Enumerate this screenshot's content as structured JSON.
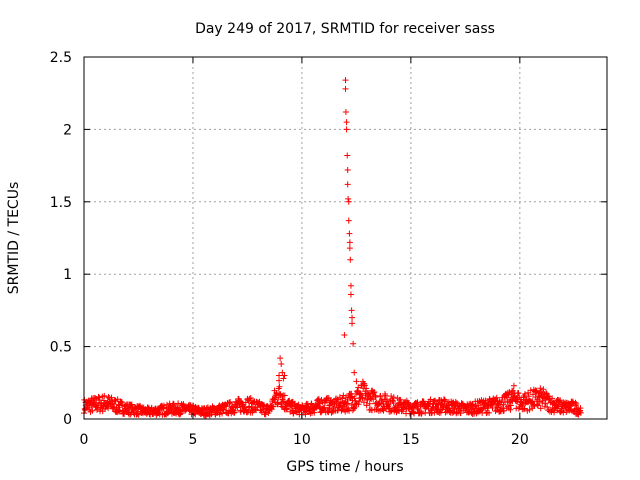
{
  "chart_data": {
    "type": "scatter",
    "title": "Day 249 of 2017, SRMTID for receiver sass",
    "xlabel": "GPS time / hours",
    "ylabel": "SRMTID / TECUs",
    "xlim": [
      0,
      24
    ],
    "ylim": [
      0,
      2.5
    ],
    "x_ticks": [
      0,
      5,
      10,
      15,
      20
    ],
    "y_ticks": [
      0,
      0.5,
      1,
      1.5,
      2,
      2.5
    ],
    "x_tick_labels": [
      "0",
      "5",
      "10",
      "15",
      "20"
    ],
    "y_tick_labels": [
      "0",
      "0.5",
      "1",
      "1.5",
      "2",
      "2.5"
    ],
    "grid": true,
    "marker": "+",
    "color": "#ff0000",
    "series": [
      {
        "name": "SRMTID",
        "baseline_trace": {
          "x": [
            0.0,
            0.5,
            1.0,
            1.5,
            2.0,
            2.5,
            3.0,
            3.5,
            4.0,
            4.5,
            5.0,
            5.5,
            6.0,
            6.5,
            7.0,
            7.5,
            8.0,
            8.5,
            8.8,
            9.0,
            9.2,
            9.5,
            10.0,
            10.5,
            11.0,
            11.5,
            11.8,
            12.2,
            12.5,
            12.8,
            13.0,
            13.5,
            14.0,
            14.5,
            15.0,
            15.5,
            16.0,
            16.5,
            17.0,
            17.5,
            18.0,
            18.5,
            19.0,
            19.5,
            19.8,
            20.0,
            20.5,
            21.0,
            21.5,
            22.0,
            22.5,
            22.8
          ],
          "y": [
            0.09,
            0.1,
            0.11,
            0.09,
            0.07,
            0.06,
            0.05,
            0.06,
            0.07,
            0.07,
            0.06,
            0.05,
            0.06,
            0.07,
            0.09,
            0.1,
            0.08,
            0.06,
            0.15,
            0.2,
            0.12,
            0.08,
            0.06,
            0.08,
            0.1,
            0.09,
            0.1,
            0.12,
            0.15,
            0.17,
            0.14,
            0.12,
            0.11,
            0.09,
            0.08,
            0.08,
            0.09,
            0.09,
            0.08,
            0.07,
            0.08,
            0.09,
            0.1,
            0.12,
            0.16,
            0.11,
            0.13,
            0.14,
            0.1,
            0.08,
            0.08,
            0.06
          ]
        },
        "spike_points": {
          "x": [
            8.95,
            9.0,
            9.05,
            9.1,
            9.15,
            9.2,
            11.95,
            12.0,
            12.0,
            12.02,
            12.05,
            12.05,
            12.08,
            12.1,
            12.1,
            12.12,
            12.15,
            12.15,
            12.18,
            12.2,
            12.2,
            12.22,
            12.25,
            12.25,
            12.28,
            12.3,
            12.3,
            12.35,
            12.4,
            12.5
          ],
          "y": [
            0.3,
            0.42,
            0.38,
            0.32,
            0.28,
            0.3,
            0.58,
            2.34,
            2.28,
            2.12,
            2.05,
            2.0,
            1.82,
            1.72,
            1.62,
            1.52,
            1.5,
            1.37,
            1.28,
            1.22,
            1.18,
            1.1,
            0.92,
            0.86,
            0.75,
            0.7,
            0.66,
            0.52,
            0.32,
            0.26
          ]
        }
      }
    ]
  }
}
